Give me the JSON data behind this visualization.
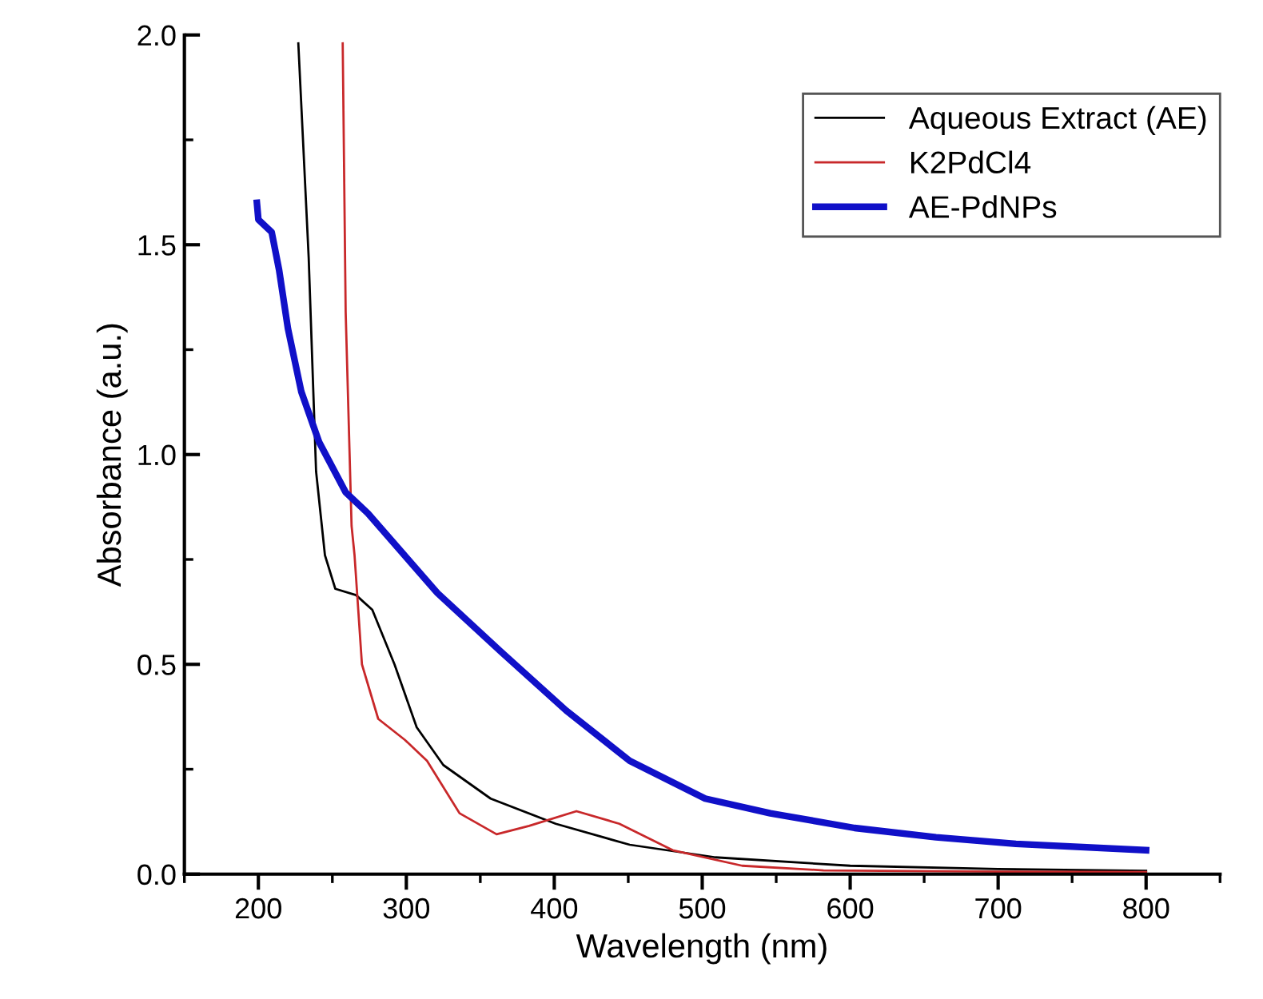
{
  "chart_data": {
    "type": "line",
    "xlabel": "Wavelength (nm)",
    "ylabel": "Absorbance (a.u.)",
    "xlim": [
      150,
      850
    ],
    "xticks": [
      200,
      300,
      400,
      500,
      600,
      700,
      800
    ],
    "ylim": [
      0,
      2.0
    ],
    "yticks": [
      {
        "value": 0,
        "label": "0.0"
      },
      0.5,
      {
        "value": 1,
        "label": "1.0"
      },
      1.5,
      {
        "value": 2,
        "label": "2.0"
      }
    ],
    "grid": false,
    "legend": "top right",
    "marker": "none",
    "line_style": "solid",
    "series": [
      {
        "name": "Aqueous Extract (AE)",
        "color": "#000000",
        "x": [
          227,
          234,
          239,
          245,
          252,
          266,
          277,
          292,
          307,
          325,
          357,
          401,
          451,
          509,
          600,
          700,
          800
        ],
        "values": [
          1.98,
          1.47,
          0.96,
          0.76,
          0.68,
          0.665,
          0.63,
          0.5,
          0.35,
          0.26,
          0.18,
          0.12,
          0.07,
          0.04,
          0.02,
          0.012,
          0.008
        ]
      },
      {
        "name": "K2PdCl4",
        "color": "#c8282a",
        "x": [
          257,
          259,
          263,
          265,
          270,
          281,
          299,
          314,
          336,
          361,
          383,
          415,
          444,
          480,
          527,
          582,
          700,
          800
        ],
        "values": [
          1.98,
          1.34,
          0.83,
          0.76,
          0.5,
          0.37,
          0.32,
          0.27,
          0.145,
          0.095,
          0.115,
          0.15,
          0.12,
          0.057,
          0.02,
          0.009,
          0.006,
          0.005
        ]
      },
      {
        "name": "AE-PdNPs",
        "color": "#1010c8",
        "x": [
          199,
          200,
          209,
          214,
          220,
          229,
          241,
          259,
          274,
          321,
          364,
          408,
          451,
          502,
          546,
          603,
          658,
          712,
          800
        ],
        "values": [
          1.6,
          1.56,
          1.53,
          1.44,
          1.3,
          1.15,
          1.03,
          0.91,
          0.86,
          0.67,
          0.53,
          0.39,
          0.27,
          0.18,
          0.145,
          0.11,
          0.088,
          0.072,
          0.057
        ]
      }
    ]
  }
}
